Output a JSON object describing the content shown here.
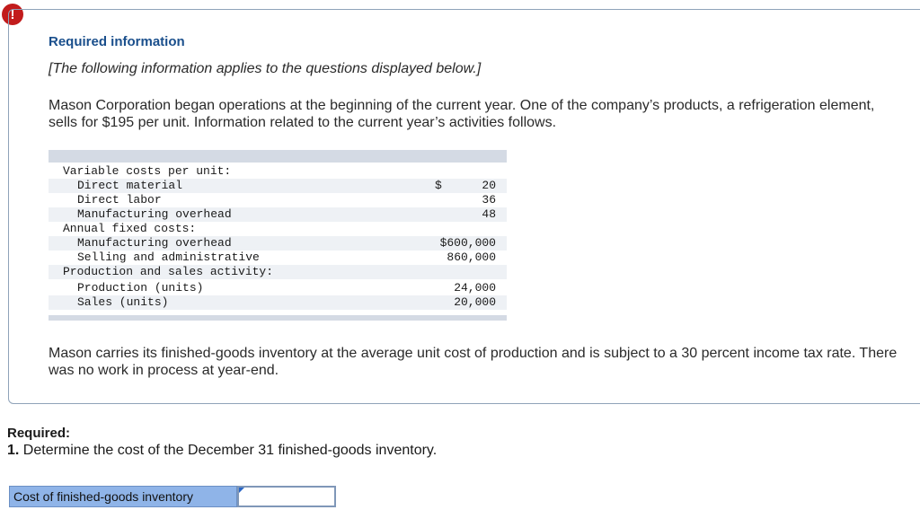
{
  "alert": {
    "symbol": "!",
    "color": "#c21c1c"
  },
  "info": {
    "title": "Required information",
    "note": "[The following information applies to the questions displayed below.]",
    "paragraph1": "Mason Corporation began operations at the beginning of the current year. One of the company’s products, a refrigeration element, sells for $195 per unit. Information related to the current year’s activities follows.",
    "paragraph2": "Mason carries its finished-goods inventory at the average unit cost of production and is subject to a 30 percent income tax rate. There was no work in process at year-end."
  },
  "table": {
    "rows": [
      {
        "label": "Variable costs per unit:",
        "currency": "",
        "value": ""
      },
      {
        "label": "Direct material",
        "currency": "$",
        "value": "20"
      },
      {
        "label": "Direct labor",
        "currency": "",
        "value": "36"
      },
      {
        "label": "Manufacturing overhead",
        "currency": "",
        "value": "48"
      },
      {
        "label": "Annual fixed costs:",
        "currency": "",
        "value": ""
      },
      {
        "label": "Manufacturing overhead",
        "currency": "",
        "value": "$600,000"
      },
      {
        "label": "Selling and administrative",
        "currency": "",
        "value": "860,000"
      },
      {
        "label": "Production and sales activity:",
        "currency": "",
        "value": ""
      },
      {
        "label": "Production (units)",
        "currency": "",
        "value": "24,000"
      },
      {
        "label": "Sales (units)",
        "currency": "",
        "value": "20,000"
      }
    ]
  },
  "required": {
    "label": "Required:",
    "question_number": "1.",
    "question_text": " Determine the cost of the December 31 finished-goods inventory.",
    "answer_label": "Cost of finished-goods inventory",
    "answer_value": ""
  }
}
